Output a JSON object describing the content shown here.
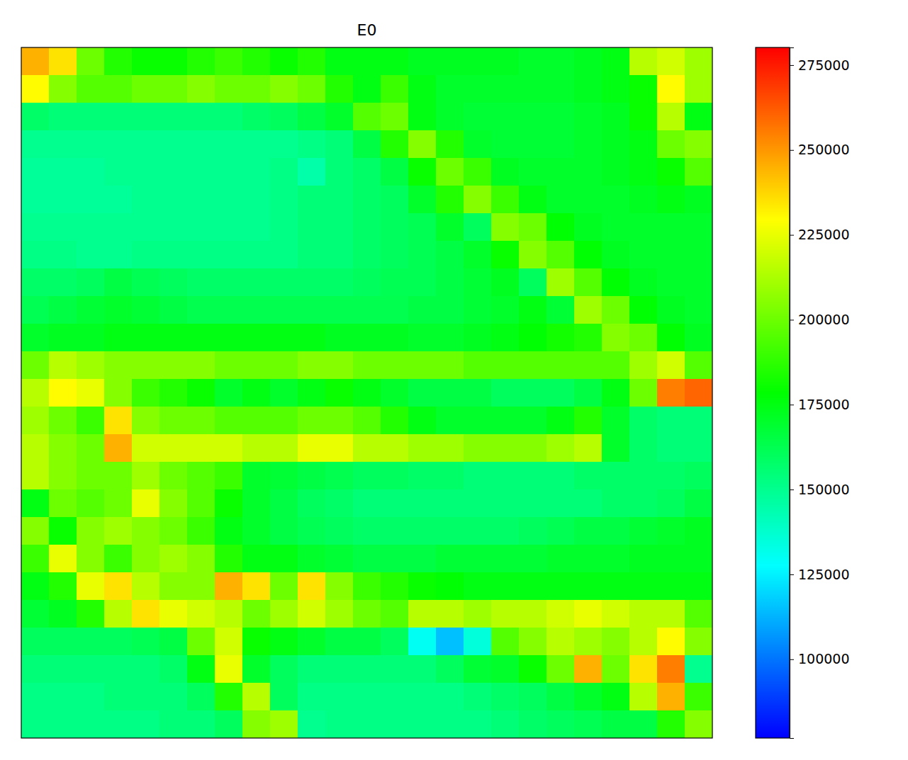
{
  "chart_data": {
    "type": "heatmap",
    "title": "E0",
    "tick_labels": false,
    "cells": [
      [
        245000,
        235000,
        200000,
        185000,
        180000,
        180000,
        185000,
        190000,
        185000,
        180000,
        185000,
        175000,
        175000,
        175000,
        172000,
        172000,
        172000,
        172000,
        170000,
        170000,
        172000,
        175000,
        215000,
        220000,
        210000
      ],
      [
        230000,
        205000,
        195000,
        195000,
        200000,
        200000,
        205000,
        200000,
        200000,
        205000,
        200000,
        185000,
        175000,
        190000,
        175000,
        170000,
        170000,
        170000,
        170000,
        170000,
        172000,
        175000,
        180000,
        230000,
        210000
      ],
      [
        158000,
        155000,
        155000,
        155000,
        155000,
        155000,
        155000,
        155000,
        158000,
        160000,
        165000,
        170000,
        195000,
        200000,
        175000,
        170000,
        168000,
        168000,
        168000,
        168000,
        170000,
        172000,
        180000,
        215000,
        175000
      ],
      [
        150000,
        150000,
        150000,
        150000,
        150000,
        150000,
        150000,
        150000,
        150000,
        150000,
        152000,
        155000,
        165000,
        185000,
        205000,
        185000,
        170000,
        168000,
        168000,
        168000,
        170000,
        172000,
        175000,
        200000,
        205000
      ],
      [
        148000,
        148000,
        148000,
        150000,
        150000,
        150000,
        150000,
        150000,
        150000,
        152000,
        145000,
        155000,
        158000,
        165000,
        180000,
        200000,
        190000,
        172000,
        170000,
        170000,
        170000,
        172000,
        175000,
        180000,
        195000
      ],
      [
        148000,
        148000,
        148000,
        148000,
        150000,
        150000,
        150000,
        150000,
        150000,
        152000,
        155000,
        155000,
        158000,
        160000,
        170000,
        185000,
        205000,
        190000,
        175000,
        170000,
        170000,
        170000,
        172000,
        175000,
        172000
      ],
      [
        150000,
        150000,
        150000,
        150000,
        150000,
        150000,
        150000,
        150000,
        150000,
        152000,
        155000,
        155000,
        158000,
        160000,
        162000,
        170000,
        160000,
        205000,
        200000,
        178000,
        172000,
        170000,
        170000,
        170000,
        170000
      ],
      [
        152000,
        152000,
        150000,
        150000,
        152000,
        152000,
        152000,
        152000,
        152000,
        152000,
        155000,
        155000,
        158000,
        160000,
        162000,
        165000,
        170000,
        180000,
        205000,
        195000,
        178000,
        172000,
        170000,
        170000,
        170000
      ],
      [
        158000,
        158000,
        160000,
        165000,
        162000,
        160000,
        158000,
        158000,
        158000,
        158000,
        158000,
        158000,
        160000,
        162000,
        162000,
        165000,
        168000,
        172000,
        160000,
        210000,
        195000,
        178000,
        172000,
        170000,
        170000
      ],
      [
        162000,
        165000,
        168000,
        170000,
        168000,
        165000,
        163000,
        163000,
        163000,
        163000,
        163000,
        163000,
        163000,
        163000,
        165000,
        165000,
        168000,
        170000,
        175000,
        168000,
        210000,
        200000,
        178000,
        172000,
        170000
      ],
      [
        170000,
        172000,
        172000,
        175000,
        175000,
        175000,
        175000,
        175000,
        175000,
        175000,
        175000,
        172000,
        172000,
        172000,
        170000,
        170000,
        172000,
        175000,
        178000,
        182000,
        185000,
        205000,
        200000,
        178000,
        172000
      ],
      [
        200000,
        215000,
        210000,
        205000,
        205000,
        205000,
        205000,
        200000,
        200000,
        200000,
        205000,
        205000,
        200000,
        200000,
        200000,
        200000,
        195000,
        195000,
        195000,
        195000,
        195000,
        195000,
        210000,
        220000,
        195000
      ],
      [
        215000,
        230000,
        225000,
        205000,
        190000,
        185000,
        180000,
        170000,
        175000,
        170000,
        175000,
        180000,
        175000,
        170000,
        165000,
        165000,
        165000,
        160000,
        160000,
        160000,
        165000,
        175000,
        200000,
        255000,
        260000
      ],
      [
        210000,
        200000,
        190000,
        235000,
        205000,
        200000,
        200000,
        195000,
        195000,
        195000,
        200000,
        200000,
        195000,
        185000,
        175000,
        170000,
        170000,
        170000,
        170000,
        175000,
        185000,
        170000,
        158000,
        155000,
        155000
      ],
      [
        215000,
        205000,
        200000,
        245000,
        220000,
        220000,
        220000,
        220000,
        215000,
        215000,
        225000,
        225000,
        215000,
        215000,
        210000,
        210000,
        205000,
        205000,
        205000,
        210000,
        215000,
        170000,
        158000,
        155000,
        155000
      ],
      [
        215000,
        205000,
        200000,
        200000,
        210000,
        200000,
        195000,
        190000,
        170000,
        168000,
        165000,
        163000,
        160000,
        160000,
        158000,
        158000,
        155000,
        155000,
        155000,
        155000,
        158000,
        158000,
        158000,
        158000,
        160000
      ],
      [
        175000,
        200000,
        195000,
        200000,
        225000,
        205000,
        195000,
        180000,
        170000,
        165000,
        160000,
        158000,
        155000,
        155000,
        155000,
        155000,
        155000,
        155000,
        155000,
        155000,
        155000,
        158000,
        158000,
        160000,
        165000
      ],
      [
        205000,
        180000,
        205000,
        210000,
        205000,
        200000,
        190000,
        175000,
        170000,
        165000,
        162000,
        160000,
        158000,
        158000,
        158000,
        158000,
        158000,
        158000,
        160000,
        162000,
        165000,
        165000,
        168000,
        170000,
        172000
      ],
      [
        190000,
        225000,
        205000,
        190000,
        205000,
        210000,
        205000,
        185000,
        175000,
        175000,
        170000,
        168000,
        165000,
        165000,
        165000,
        168000,
        168000,
        168000,
        168000,
        170000,
        170000,
        170000,
        172000,
        172000,
        172000
      ],
      [
        175000,
        185000,
        225000,
        235000,
        215000,
        205000,
        205000,
        245000,
        235000,
        200000,
        235000,
        205000,
        190000,
        185000,
        180000,
        178000,
        175000,
        175000,
        175000,
        175000,
        175000,
        175000,
        175000,
        175000,
        175000
      ],
      [
        168000,
        172000,
        185000,
        215000,
        235000,
        225000,
        220000,
        215000,
        200000,
        210000,
        220000,
        210000,
        200000,
        195000,
        215000,
        215000,
        210000,
        215000,
        215000,
        220000,
        225000,
        220000,
        215000,
        215000,
        195000
      ],
      [
        160000,
        160000,
        160000,
        160000,
        162000,
        165000,
        200000,
        220000,
        180000,
        175000,
        170000,
        165000,
        165000,
        160000,
        130000,
        115000,
        135000,
        195000,
        205000,
        215000,
        210000,
        205000,
        215000,
        230000,
        205000
      ],
      [
        155000,
        155000,
        155000,
        155000,
        155000,
        158000,
        175000,
        225000,
        170000,
        160000,
        155000,
        155000,
        155000,
        155000,
        155000,
        160000,
        168000,
        170000,
        180000,
        200000,
        245000,
        200000,
        235000,
        255000,
        150000
      ],
      [
        152000,
        152000,
        152000,
        155000,
        155000,
        155000,
        160000,
        185000,
        215000,
        160000,
        152000,
        152000,
        152000,
        152000,
        152000,
        152000,
        155000,
        158000,
        160000,
        165000,
        170000,
        175000,
        215000,
        245000,
        190000
      ],
      [
        152000,
        152000,
        152000,
        152000,
        152000,
        155000,
        155000,
        160000,
        205000,
        210000,
        150000,
        152000,
        152000,
        152000,
        152000,
        152000,
        152000,
        155000,
        158000,
        160000,
        162000,
        165000,
        165000,
        185000,
        205000
      ]
    ],
    "colorbar": {
      "range": [
        76800,
        280200
      ],
      "ticks": [
        100000,
        125000,
        150000,
        175000,
        200000,
        225000,
        250000,
        275000
      ]
    }
  }
}
